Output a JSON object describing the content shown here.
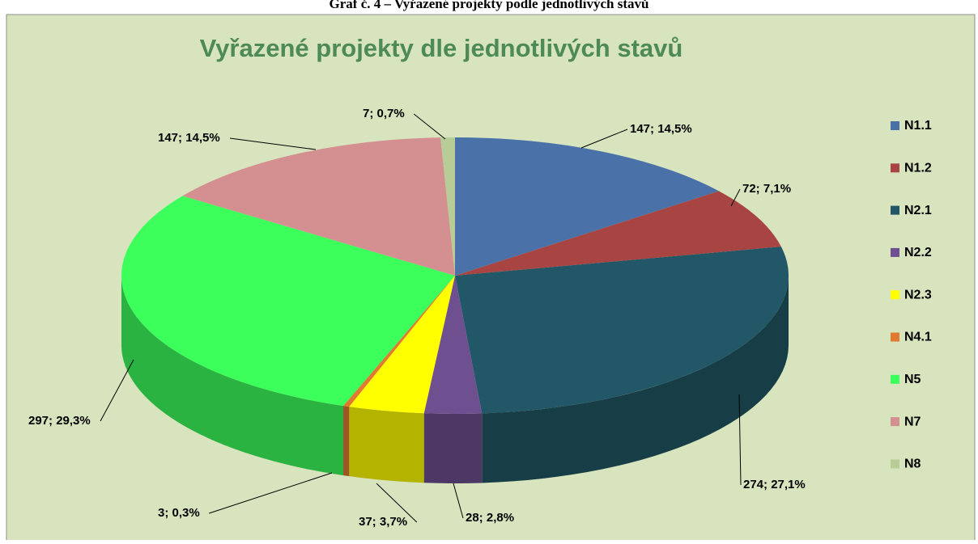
{
  "caption": "Graf č. 4 – Vyřazené projekty podle jednotlivých stavů",
  "chart_data": {
    "type": "pie",
    "title": "Vyřazené projekty dle jednotlivých stavů",
    "categories": [
      "N1.1",
      "N1.2",
      "N2.1",
      "N2.2",
      "N2.3",
      "N4.1",
      "N5",
      "N7",
      "N8"
    ],
    "values": [
      147,
      72,
      274,
      28,
      37,
      3,
      297,
      147,
      7
    ],
    "value_labels": [
      "147; 14,5%",
      "72; 7,1%",
      "274; 27,1%",
      "28; 2,8%",
      "37; 3,7%",
      "3; 0,3%",
      "297; 29,3%",
      "147; 14,5%",
      "7; 0,7%"
    ],
    "colors": [
      "#4a72a8",
      "#a84442",
      "#215766",
      "#6e5090",
      "#ffff00",
      "#e07a30",
      "#3cff5c",
      "#d49090",
      "#b8cc98"
    ],
    "legend": "right"
  }
}
